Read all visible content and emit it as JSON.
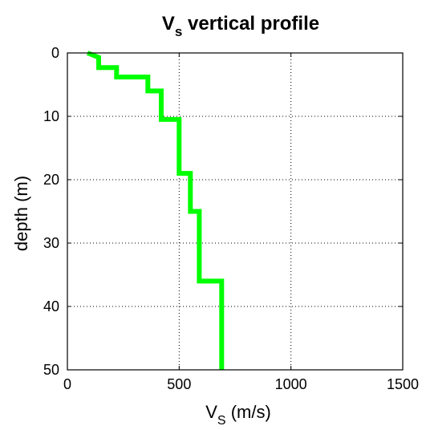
{
  "chart_data": {
    "type": "line",
    "title": {
      "main": "V",
      "sub": "s",
      "rest": " vertical profile"
    },
    "xlabel": {
      "main": "V",
      "sub": "S",
      "rest": " (m/s)"
    },
    "ylabel": "depth (m)",
    "xlim": [
      0,
      1500
    ],
    "ylim": [
      0,
      50
    ],
    "y_reversed": true,
    "grid": true,
    "x_ticks": [
      0,
      500,
      1000,
      1500
    ],
    "y_ticks": [
      0,
      10,
      20,
      30,
      40,
      50
    ],
    "line_color": "#00ff00",
    "series": [
      {
        "x": [
          90,
          140,
          140,
          220,
          220,
          360,
          360,
          420,
          420,
          500,
          500,
          550,
          550,
          590,
          590,
          690,
          690
        ],
        "y": [
          0,
          0.7,
          2.3,
          2.3,
          3.8,
          3.8,
          6,
          6,
          10.5,
          10.5,
          19,
          19,
          25,
          25,
          36,
          36,
          50
        ]
      }
    ]
  }
}
